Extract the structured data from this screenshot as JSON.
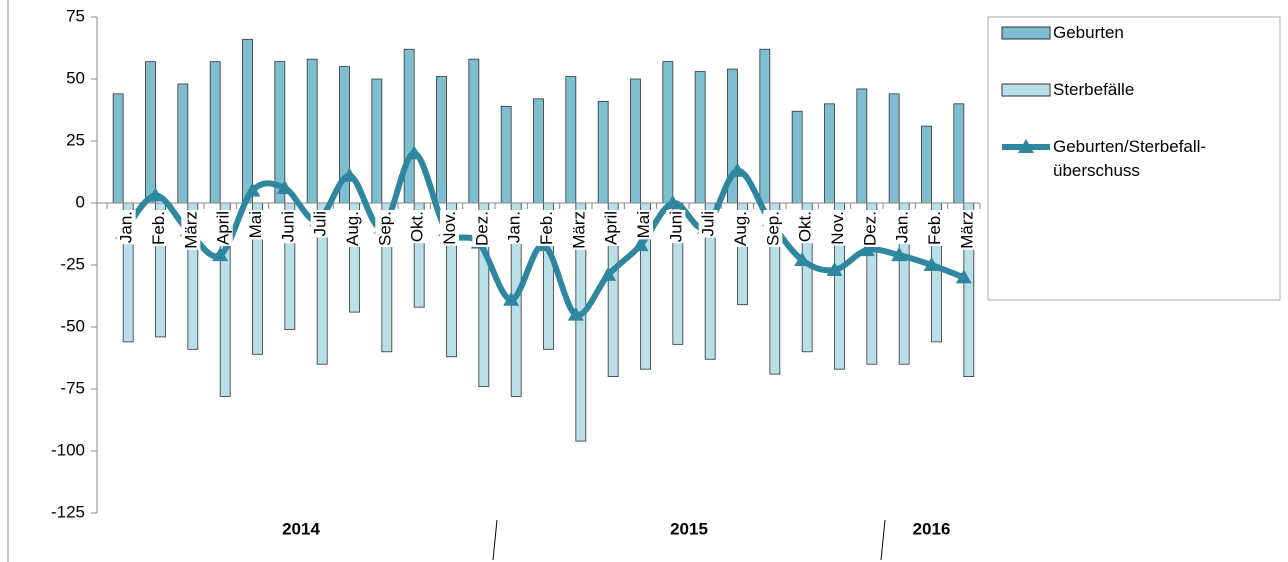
{
  "chart_data": {
    "type": "bar-line",
    "categories": [
      "Jan.",
      "Feb.",
      "März",
      "April",
      "Mai",
      "Juni",
      "Juli",
      "Aug.",
      "Sep.",
      "Okt.",
      "Nov.",
      "Dez.",
      "Jan.",
      "Feb.",
      "März",
      "April",
      "Mai",
      "Juni",
      "Juli",
      "Aug.",
      "Sep.",
      "Okt.",
      "Nov.",
      "Dez.",
      "Jan.",
      "Feb.",
      "März"
    ],
    "years": [
      "2014",
      "2015",
      "2016"
    ],
    "series": [
      {
        "name": "Geburten",
        "type": "bar",
        "color": "#7dbfd1",
        "values": [
          44,
          57,
          48,
          57,
          66,
          57,
          58,
          55,
          50,
          62,
          51,
          58,
          39,
          42,
          51,
          41,
          50,
          57,
          53,
          54,
          62,
          37,
          40,
          46,
          44,
          31,
          40
        ]
      },
      {
        "name": "Sterbefälle",
        "type": "bar",
        "color": "#b9dfe9",
        "values": [
          -56,
          -54,
          -59,
          -78,
          -61,
          -51,
          -65,
          -44,
          -60,
          -42,
          -62,
          -74,
          -78,
          -59,
          -96,
          -70,
          -67,
          -57,
          -63,
          -41,
          -69,
          -60,
          -67,
          -65,
          -65,
          -56,
          -70
        ]
      },
      {
        "name": "Geburten/Sterbefall-überschuss",
        "type": "line",
        "color": "#2e879f",
        "values": [
          -12,
          3,
          -11,
          -21,
          5,
          6,
          -7,
          11,
          -10,
          20,
          -11,
          -16,
          -39,
          -17,
          -45,
          -29,
          -17,
          0,
          -10,
          13,
          -7,
          -23,
          -27,
          -19,
          -21,
          -25,
          -30
        ]
      }
    ],
    "ylim": [
      -125,
      75
    ],
    "yticks": [
      -125,
      -100,
      -75,
      -50,
      -25,
      0,
      25,
      50,
      75
    ]
  }
}
